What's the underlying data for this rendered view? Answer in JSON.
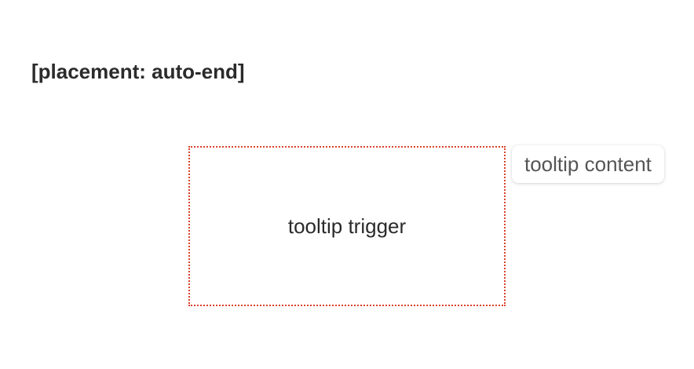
{
  "heading": {
    "text": "[placement: auto-end]"
  },
  "trigger": {
    "label": "tooltip trigger",
    "border_color": "#d9432c"
  },
  "tooltip": {
    "content": "tooltip content"
  }
}
